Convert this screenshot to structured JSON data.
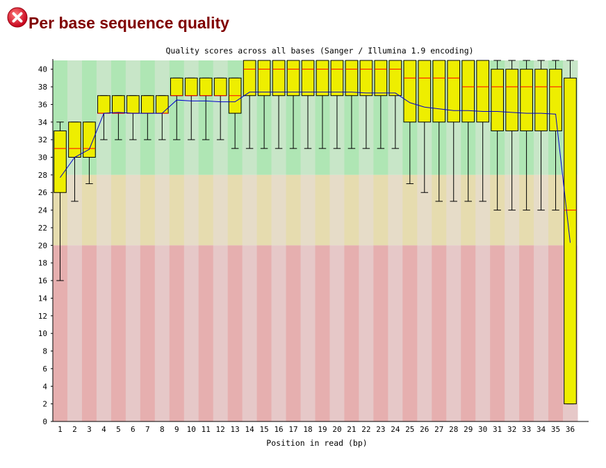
{
  "header": {
    "title": "Per base sequence quality",
    "status_icon": "fail-cross-icon",
    "status_color": "#d0021b"
  },
  "chart_data": {
    "type": "boxplot",
    "title": "Quality scores across all bases (Sanger / Illumina 1.9 encoding)",
    "xlabel": "Position in read (bp)",
    "ylabel": "",
    "ylim": [
      0,
      41
    ],
    "yticks": [
      0,
      2,
      4,
      6,
      8,
      10,
      12,
      14,
      16,
      18,
      20,
      22,
      24,
      26,
      28,
      30,
      32,
      34,
      36,
      38,
      40
    ],
    "zones": [
      {
        "name": "good",
        "from": 28,
        "to": 41,
        "colors": [
          "#afe6b4",
          "#c8e6c8"
        ]
      },
      {
        "name": "reasonable",
        "from": 20,
        "to": 28,
        "colors": [
          "#e6dcaf",
          "#e6dcc8"
        ]
      },
      {
        "name": "poor",
        "from": 0,
        "to": 20,
        "colors": [
          "#e6afaf",
          "#e6c8c8"
        ]
      }
    ],
    "colors": {
      "box": "#eeee00",
      "median": "#ff0000",
      "mean": "#0000cc",
      "whisker": "#000000"
    },
    "categories": [
      "1",
      "2",
      "3",
      "4",
      "5",
      "6",
      "7",
      "8",
      "9",
      "10",
      "11",
      "12",
      "13",
      "14",
      "15",
      "16",
      "17",
      "18",
      "19",
      "20",
      "21",
      "22",
      "23",
      "24",
      "25",
      "26",
      "27",
      "28",
      "29",
      "30",
      "31",
      "32",
      "33",
      "34",
      "35",
      "36"
    ],
    "boxes": [
      {
        "low": 16,
        "q1": 26,
        "median": 31,
        "q3": 33,
        "high": 34
      },
      {
        "low": 25,
        "q1": 30,
        "median": 31,
        "q3": 34,
        "high": 34
      },
      {
        "low": 27,
        "q1": 30,
        "median": 31,
        "q3": 34,
        "high": 34
      },
      {
        "low": 32,
        "q1": 35,
        "median": 35,
        "q3": 37,
        "high": 37
      },
      {
        "low": 32,
        "q1": 35,
        "median": 35,
        "q3": 37,
        "high": 37
      },
      {
        "low": 32,
        "q1": 35,
        "median": 35,
        "q3": 37,
        "high": 37
      },
      {
        "low": 32,
        "q1": 35,
        "median": 35,
        "q3": 37,
        "high": 37
      },
      {
        "low": 32,
        "q1": 35,
        "median": 35,
        "q3": 37,
        "high": 37
      },
      {
        "low": 32,
        "q1": 37,
        "median": 37,
        "q3": 39,
        "high": 39
      },
      {
        "low": 32,
        "q1": 37,
        "median": 37,
        "q3": 39,
        "high": 39
      },
      {
        "low": 32,
        "q1": 37,
        "median": 37,
        "q3": 39,
        "high": 39
      },
      {
        "low": 32,
        "q1": 37,
        "median": 37,
        "q3": 39,
        "high": 39
      },
      {
        "low": 31,
        "q1": 35,
        "median": 37,
        "q3": 39,
        "high": 39
      },
      {
        "low": 31,
        "q1": 37,
        "median": 40,
        "q3": 41,
        "high": 41
      },
      {
        "low": 31,
        "q1": 37,
        "median": 40,
        "q3": 41,
        "high": 41
      },
      {
        "low": 31,
        "q1": 37,
        "median": 40,
        "q3": 41,
        "high": 41
      },
      {
        "low": 31,
        "q1": 37,
        "median": 40,
        "q3": 41,
        "high": 41
      },
      {
        "low": 31,
        "q1": 37,
        "median": 40,
        "q3": 41,
        "high": 41
      },
      {
        "low": 31,
        "q1": 37,
        "median": 40,
        "q3": 41,
        "high": 41
      },
      {
        "low": 31,
        "q1": 37,
        "median": 40,
        "q3": 41,
        "high": 41
      },
      {
        "low": 31,
        "q1": 37,
        "median": 40,
        "q3": 41,
        "high": 41
      },
      {
        "low": 31,
        "q1": 37,
        "median": 40,
        "q3": 41,
        "high": 41
      },
      {
        "low": 31,
        "q1": 37,
        "median": 40,
        "q3": 41,
        "high": 41
      },
      {
        "low": 31,
        "q1": 37,
        "median": 40,
        "q3": 41,
        "high": 41
      },
      {
        "low": 27,
        "q1": 34,
        "median": 39,
        "q3": 41,
        "high": 41
      },
      {
        "low": 26,
        "q1": 34,
        "median": 39,
        "q3": 41,
        "high": 41
      },
      {
        "low": 25,
        "q1": 34,
        "median": 39,
        "q3": 41,
        "high": 41
      },
      {
        "low": 25,
        "q1": 34,
        "median": 39,
        "q3": 41,
        "high": 41
      },
      {
        "low": 25,
        "q1": 34,
        "median": 38,
        "q3": 41,
        "high": 41
      },
      {
        "low": 25,
        "q1": 34,
        "median": 38,
        "q3": 41,
        "high": 41
      },
      {
        "low": 24,
        "q1": 33,
        "median": 38,
        "q3": 40,
        "high": 41
      },
      {
        "low": 24,
        "q1": 33,
        "median": 38,
        "q3": 40,
        "high": 41
      },
      {
        "low": 24,
        "q1": 33,
        "median": 38,
        "q3": 40,
        "high": 41
      },
      {
        "low": 24,
        "q1": 33,
        "median": 38,
        "q3": 40,
        "high": 41
      },
      {
        "low": 24,
        "q1": 33,
        "median": 38,
        "q3": 40,
        "high": 41
      },
      {
        "low": 2,
        "q1": 2,
        "median": 24,
        "q3": 39,
        "high": 41
      }
    ],
    "mean": [
      27.7,
      30.0,
      30.9,
      35.0,
      35.1,
      35.0,
      35.0,
      35.0,
      36.5,
      36.4,
      36.4,
      36.3,
      36.3,
      37.4,
      37.4,
      37.4,
      37.4,
      37.4,
      37.4,
      37.4,
      37.4,
      37.3,
      37.3,
      37.3,
      36.2,
      35.7,
      35.5,
      35.3,
      35.3,
      35.2,
      35.2,
      35.1,
      35.0,
      35.0,
      34.9,
      20.3
    ]
  }
}
